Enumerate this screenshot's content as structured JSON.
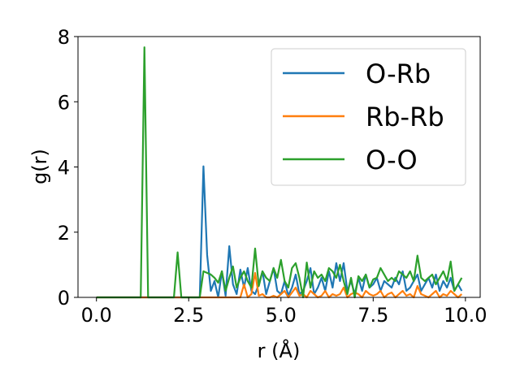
{
  "chart_data": {
    "type": "line",
    "title": "",
    "xlabel": "r (Å)",
    "ylabel": "g(r)",
    "xlim": [
      -0.5,
      10.4
    ],
    "ylim": [
      0,
      8
    ],
    "xticks": [
      0.0,
      2.5,
      5.0,
      7.5,
      10.0
    ],
    "xtick_labels": [
      "0.0",
      "2.5",
      "5.0",
      "7.5",
      "10.0"
    ],
    "yticks": [
      0,
      2,
      4,
      6,
      8
    ],
    "ytick_labels": [
      "0",
      "2",
      "4",
      "6",
      "8"
    ],
    "grid": false,
    "legend_position": "top-right",
    "series": [
      {
        "name": "O-Rb",
        "color": "#1f77b4",
        "x": [
          0.0,
          2.8,
          2.9,
          3.0,
          3.1,
          3.2,
          3.3,
          3.4,
          3.5,
          3.6,
          3.7,
          3.8,
          3.9,
          4.0,
          4.1,
          4.2,
          4.3,
          4.4,
          4.5,
          4.6,
          4.7,
          4.8,
          4.9,
          5.0,
          5.1,
          5.2,
          5.3,
          5.4,
          5.5,
          5.6,
          5.7,
          5.8,
          5.9,
          6.0,
          6.1,
          6.2,
          6.3,
          6.4,
          6.5,
          6.6,
          6.7,
          6.8,
          6.9,
          7.0,
          7.1,
          7.2,
          7.3,
          7.4,
          7.5,
          7.6,
          7.7,
          7.8,
          7.9,
          8.0,
          8.1,
          8.2,
          8.3,
          8.4,
          8.5,
          8.6,
          8.7,
          8.8,
          8.9,
          9.0,
          9.1,
          9.2,
          9.3,
          9.4,
          9.5,
          9.6,
          9.7,
          9.8,
          9.9
        ],
        "y": [
          0.0,
          0.0,
          4.02,
          1.3,
          0.2,
          0.5,
          0.0,
          0.8,
          0.05,
          1.57,
          0.4,
          0.1,
          0.85,
          0.3,
          0.9,
          0.2,
          0.1,
          0.4,
          0.8,
          0.1,
          0.5,
          0.9,
          0.2,
          0.1,
          0.5,
          0.05,
          0.3,
          0.7,
          0.1,
          0.2,
          0.5,
          0.9,
          0.1,
          0.3,
          0.6,
          0.2,
          0.8,
          0.3,
          1.05,
          0.5,
          1.05,
          0.2,
          0.5,
          0.1,
          0.6,
          0.2,
          0.7,
          0.3,
          0.4,
          0.6,
          0.2,
          0.5,
          0.4,
          0.3,
          0.6,
          0.4,
          0.8,
          0.2,
          0.3,
          0.5,
          0.7,
          0.2,
          0.4,
          0.6,
          0.3,
          0.7,
          0.2,
          0.5,
          0.3,
          0.6,
          0.2,
          0.4,
          0.2
        ]
      },
      {
        "name": "Rb-Rb",
        "color": "#ff7f0e",
        "x": [
          0.0,
          3.9,
          4.0,
          4.1,
          4.2,
          4.3,
          4.4,
          4.5,
          4.6,
          4.7,
          4.8,
          4.9,
          5.0,
          5.1,
          5.2,
          5.3,
          5.4,
          5.5,
          5.6,
          5.7,
          5.8,
          5.9,
          6.0,
          6.1,
          6.2,
          6.3,
          6.4,
          6.5,
          6.6,
          6.7,
          6.8,
          6.9,
          7.0,
          7.1,
          7.2,
          7.3,
          7.4,
          7.5,
          7.6,
          7.7,
          7.8,
          7.9,
          8.0,
          8.1,
          8.2,
          8.3,
          8.4,
          8.5,
          8.6,
          8.7,
          8.8,
          8.9,
          9.0,
          9.1,
          9.2,
          9.3,
          9.4,
          9.5,
          9.6,
          9.7,
          9.8,
          9.9
        ],
        "y": [
          0.0,
          0.0,
          0.4,
          0.0,
          0.1,
          0.75,
          0.05,
          0.1,
          0.0,
          0.0,
          0.05,
          0.0,
          0.1,
          0.2,
          0.0,
          0.15,
          0.3,
          0.05,
          0.1,
          0.0,
          0.2,
          0.1,
          0.0,
          0.05,
          0.2,
          0.0,
          0.1,
          0.05,
          0.1,
          0.3,
          0.0,
          0.1,
          0.15,
          0.1,
          0.0,
          0.2,
          0.1,
          0.05,
          0.1,
          0.2,
          0.0,
          0.1,
          0.15,
          0.0,
          0.1,
          0.2,
          0.05,
          0.1,
          0.0,
          0.35,
          0.1,
          0.05,
          0.0,
          0.1,
          0.2,
          0.0,
          0.1,
          0.05,
          0.2,
          0.1,
          0.0,
          0.1
        ]
      },
      {
        "name": "O-O",
        "color": "#2ca02c",
        "x": [
          0.0,
          1.2,
          1.3,
          1.4,
          2.1,
          2.2,
          2.3,
          2.8,
          2.9,
          3.0,
          3.1,
          3.2,
          3.3,
          3.4,
          3.5,
          3.6,
          3.7,
          3.8,
          3.9,
          4.0,
          4.1,
          4.2,
          4.3,
          4.4,
          4.5,
          4.6,
          4.7,
          4.8,
          4.9,
          5.0,
          5.1,
          5.2,
          5.3,
          5.4,
          5.5,
          5.6,
          5.7,
          5.8,
          5.9,
          6.0,
          6.1,
          6.2,
          6.3,
          6.4,
          6.5,
          6.6,
          6.7,
          6.8,
          6.9,
          7.0,
          7.1,
          7.2,
          7.3,
          7.4,
          7.5,
          7.6,
          7.7,
          7.8,
          7.9,
          8.0,
          8.1,
          8.2,
          8.3,
          8.4,
          8.5,
          8.6,
          8.7,
          8.8,
          8.9,
          9.0,
          9.1,
          9.2,
          9.3,
          9.4,
          9.5,
          9.6,
          9.7,
          9.8,
          9.9
        ],
        "y": [
          0.0,
          0.0,
          7.67,
          0.0,
          0.0,
          1.38,
          0.0,
          0.0,
          0.8,
          0.75,
          0.7,
          0.6,
          0.45,
          0.8,
          0.2,
          0.6,
          0.95,
          0.3,
          0.6,
          0.8,
          0.5,
          0.3,
          1.5,
          0.35,
          0.8,
          0.6,
          0.5,
          0.9,
          0.6,
          1.15,
          0.5,
          0.3,
          0.9,
          1.05,
          0.6,
          0.0,
          1.07,
          0.3,
          0.8,
          0.6,
          0.7,
          0.5,
          0.9,
          0.8,
          0.6,
          1.0,
          0.5,
          0.1,
          0.6,
          0.0,
          0.65,
          0.5,
          0.7,
          0.3,
          0.55,
          0.6,
          0.9,
          0.7,
          0.5,
          0.6,
          0.5,
          0.8,
          0.7,
          0.6,
          0.8,
          0.5,
          1.28,
          0.6,
          0.5,
          0.6,
          0.7,
          0.4,
          0.6,
          0.8,
          0.5,
          1.1,
          0.2,
          0.4,
          0.6
        ]
      }
    ]
  }
}
